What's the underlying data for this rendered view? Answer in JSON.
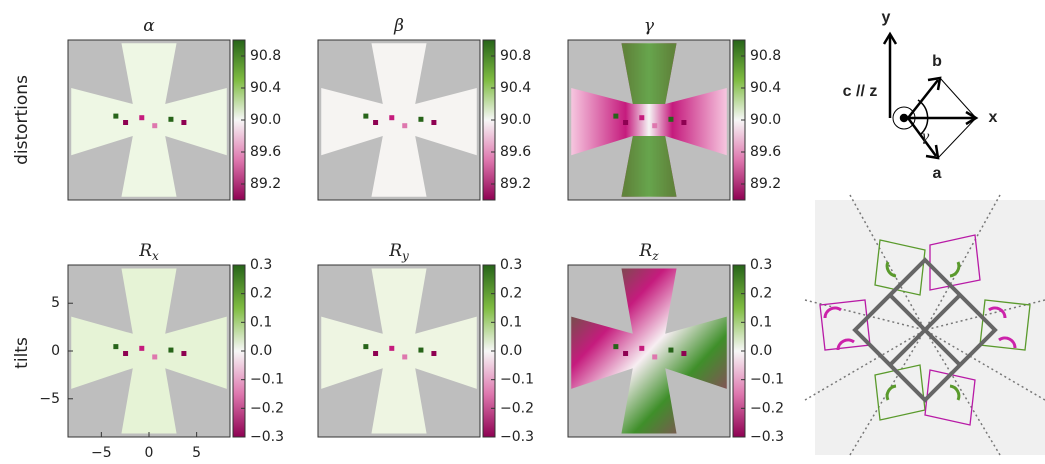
{
  "row_labels": [
    "distortions",
    "tilts"
  ],
  "panels": [
    {
      "title": "α"
    },
    {
      "title": "β"
    },
    {
      "title": "γ"
    },
    {
      "title": "R",
      "subscript": "x"
    },
    {
      "title": "R",
      "subscript": "y"
    },
    {
      "title": "R",
      "subscript": "z"
    }
  ],
  "colorbars": [
    {
      "ylim": [
        89.0,
        91.0
      ],
      "ticks": [
        90.8,
        90.4,
        {
          "value": 90,
          "label": "90.0"
        },
        89.6,
        89.2
      ]
    },
    {
      "ylim": [
        -0.3,
        0.3
      ],
      "ticks": [
        0.3,
        0.2,
        0.1,
        {
          "value": 0,
          "label": "0.0"
        },
        {
          "value": -0.1,
          "label": "−0.1"
        },
        {
          "value": -0.2,
          "label": "−0.2"
        },
        {
          "value": -0.3,
          "label": "−0.3"
        }
      ]
    }
  ],
  "axes": {
    "xlim": [
      -8.5,
      8.5
    ],
    "xticks": [
      {
        "value": -5,
        "label": "−5"
      },
      0,
      5
    ],
    "ylim": [
      -9,
      9
    ],
    "yticks": [
      5,
      0,
      {
        "value": -5,
        "label": "−5"
      }
    ]
  },
  "diagram": {
    "y": "y",
    "b": "b",
    "cz": "c // z",
    "x": "x",
    "gamma": "γ",
    "a": "a"
  }
}
